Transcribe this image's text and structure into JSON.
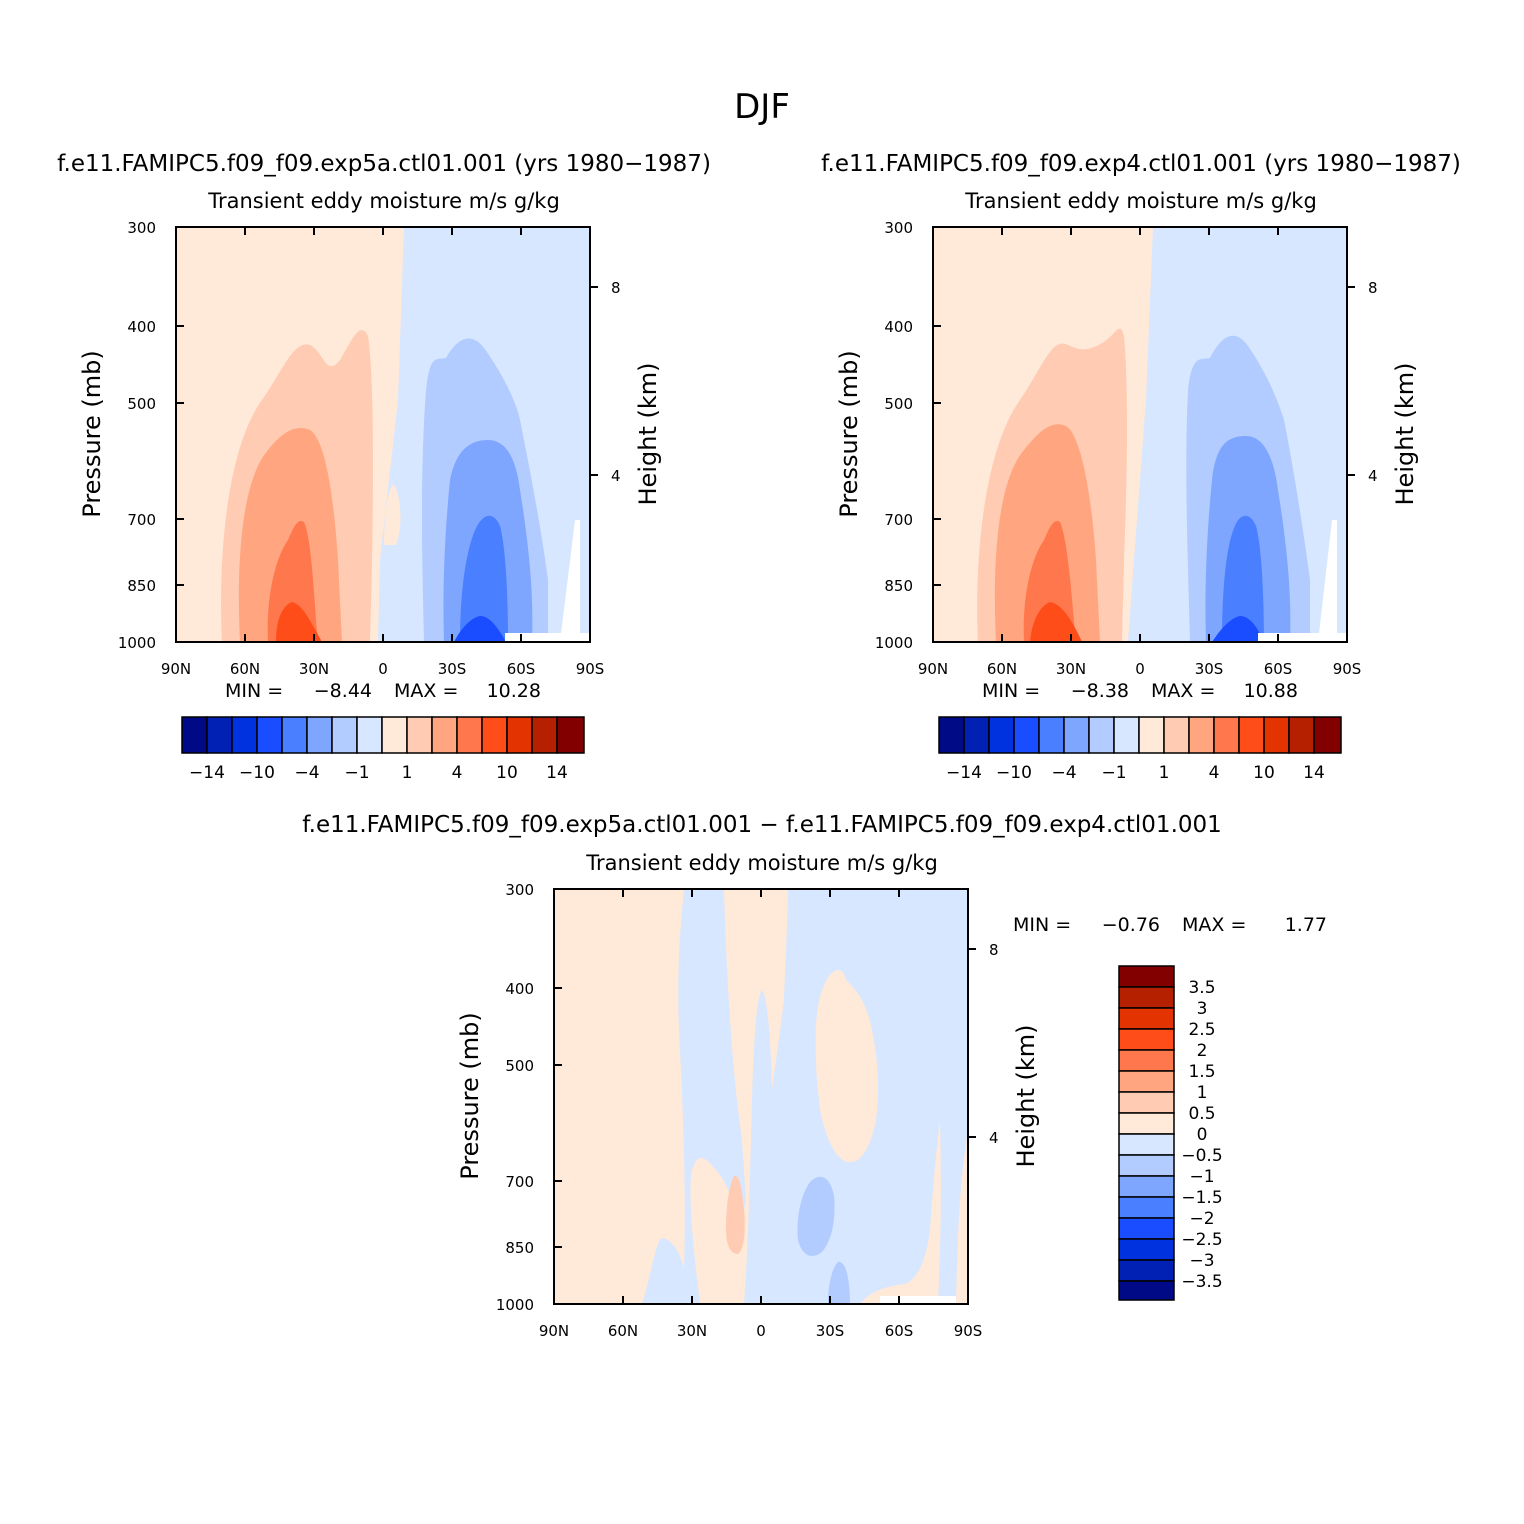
{
  "figure": {
    "title": "DJF"
  },
  "colors": {
    "fill_palette": [
      "#000a87",
      "#0021b3",
      "#0032e0",
      "#1a4dff",
      "#4a7fff",
      "#7ea6ff",
      "#b3ccff",
      "#d6e7ff",
      "#ffe9d9",
      "#ffcbb3",
      "#ffa680",
      "#ff784d",
      "#ff4d1a",
      "#e33300",
      "#b52000",
      "#820000"
    ],
    "frame": "#000000"
  },
  "chart_data": [
    {
      "type": "heatmap",
      "id": "panel-exp5a",
      "run_title": "f.e11.FAMIPC5.f09_f09.exp5a.ctl01.001 (yrs 1980−1987)",
      "subtitle": "Transient eddy moisture m/s g/kg",
      "ylabel": "Pressure (mb)",
      "ylabel_right": "Height (km)",
      "x_ticks": [
        "90N",
        "60N",
        "30N",
        "0",
        "30S",
        "60S",
        "90S"
      ],
      "y_ticks": [
        "300",
        "400",
        "500",
        "700",
        "850",
        "1000"
      ],
      "y2_ticks": [
        "8",
        "4"
      ],
      "min_label": "MIN =",
      "min_value": "−8.44",
      "max_label": "MAX =",
      "max_value": "10.28",
      "colorbar_labels": [
        "−14",
        "−10",
        "−4",
        "−1",
        "1",
        "4",
        "10",
        "14"
      ],
      "x_range": [
        90,
        -90
      ],
      "y_range": [
        1000,
        300
      ],
      "y_scale": "log-pressure",
      "color_levels": [
        -14,
        -12,
        -10,
        -8,
        -4,
        -2,
        -1,
        0,
        1,
        2,
        4,
        8,
        10,
        12,
        14
      ]
    },
    {
      "type": "heatmap",
      "id": "panel-exp4",
      "run_title": "f.e11.FAMIPC5.f09_f09.exp4.ctl01.001 (yrs 1980−1987)",
      "subtitle": "Transient eddy moisture m/s g/kg",
      "ylabel": "Pressure (mb)",
      "ylabel_right": "Height (km)",
      "x_ticks": [
        "90N",
        "60N",
        "30N",
        "0",
        "30S",
        "60S",
        "90S"
      ],
      "y_ticks": [
        "300",
        "400",
        "500",
        "700",
        "850",
        "1000"
      ],
      "y2_ticks": [
        "8",
        "4"
      ],
      "min_label": "MIN =",
      "min_value": "−8.38",
      "max_label": "MAX =",
      "max_value": "10.88",
      "colorbar_labels": [
        "−14",
        "−10",
        "−4",
        "−1",
        "1",
        "4",
        "10",
        "14"
      ],
      "x_range": [
        90,
        -90
      ],
      "y_range": [
        1000,
        300
      ],
      "y_scale": "log-pressure",
      "color_levels": [
        -14,
        -12,
        -10,
        -8,
        -4,
        -2,
        -1,
        0,
        1,
        2,
        4,
        8,
        10,
        12,
        14
      ]
    },
    {
      "type": "heatmap",
      "id": "panel-diff",
      "run_title": "f.e11.FAMIPC5.f09_f09.exp5a.ctl01.001 − f.e11.FAMIPC5.f09_f09.exp4.ctl01.001",
      "subtitle": "Transient eddy moisture m/s g/kg",
      "ylabel": "Pressure (mb)",
      "ylabel_right": "Height (km)",
      "x_ticks": [
        "90N",
        "60N",
        "30N",
        "0",
        "30S",
        "60S",
        "90S"
      ],
      "y_ticks": [
        "300",
        "400",
        "500",
        "700",
        "850",
        "1000"
      ],
      "y2_ticks": [
        "8",
        "4"
      ],
      "min_label": "MIN =",
      "min_value": "−0.76",
      "max_label": "MAX =",
      "max_value": "1.77",
      "colorbar_labels": [
        "3.5",
        "3",
        "2.5",
        "2",
        "1.5",
        "1",
        "0.5",
        "0",
        "−0.5",
        "−1",
        "−1.5",
        "−2",
        "−2.5",
        "−3",
        "−3.5"
      ],
      "x_range": [
        90,
        -90
      ],
      "y_range": [
        1000,
        300
      ],
      "y_scale": "log-pressure",
      "color_levels": [
        -3.5,
        -3,
        -2.5,
        -2,
        -1.5,
        -1,
        -0.5,
        0,
        0.5,
        1,
        1.5,
        2,
        2.5,
        3,
        3.5
      ]
    }
  ]
}
